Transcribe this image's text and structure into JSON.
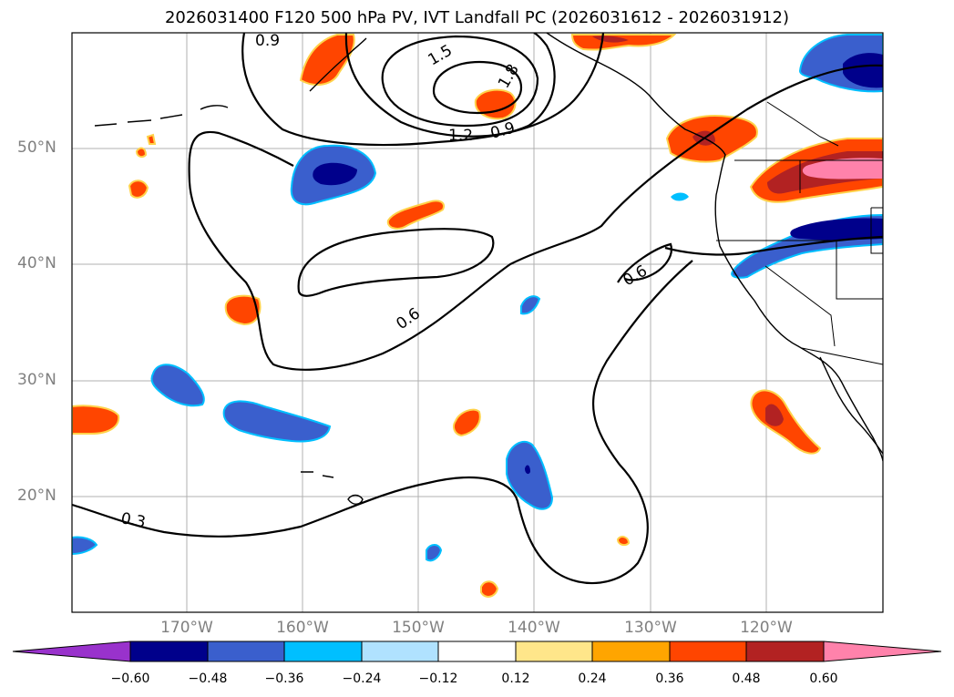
{
  "title": "2026031400 F120 500 hPa PV, IVT Landfall PC (2026031612 - 2026031912)",
  "lat_labels": [
    "50°N",
    "40°N",
    "30°N",
    "20°N"
  ],
  "lon_labels": [
    "170°W",
    "160°W",
    "150°W",
    "140°W",
    "130°W",
    "120°W"
  ],
  "contour_labels": [
    "0.9",
    "1.5",
    "1.8",
    "1.2",
    "0.9",
    "0.6",
    "0.6",
    "0.3"
  ],
  "colorbar": {
    "ticks": [
      "−0.60",
      "−0.48",
      "−0.36",
      "−0.24",
      "−0.12",
      "0.12",
      "0.24",
      "0.36",
      "0.48",
      "0.60"
    ],
    "colors": [
      "#9932cc",
      "#00008b",
      "#3a5fcd",
      "#00bfff",
      "#b0e2ff",
      "#ffffff",
      "#ffe68a",
      "#ffa500",
      "#ff4500",
      "#b22222",
      "#ff82ab"
    ]
  }
}
